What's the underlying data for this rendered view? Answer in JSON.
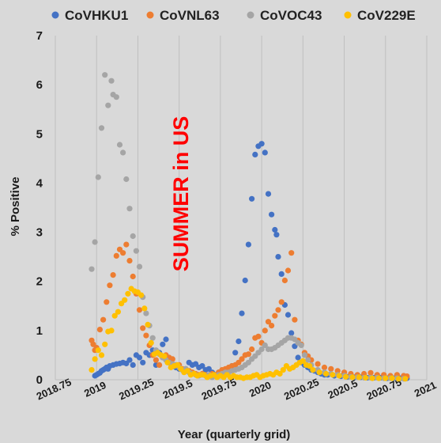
{
  "chart_data": {
    "type": "scatter",
    "xlabel": "Year (quarterly grid)",
    "ylabel": "% Positive",
    "xlim": [
      2018.75,
      2021
    ],
    "ylim": [
      0,
      7
    ],
    "xticks": [
      2018.75,
      2019,
      2019.25,
      2019.5,
      2019.75,
      2020,
      2020.25,
      2020.5,
      2020.75,
      2021
    ],
    "xtick_labels": [
      "2018.75",
      "2019",
      "2019.25",
      "2019.5",
      "2019.75",
      "2020",
      "2020.25",
      "2020.5",
      "2020.75",
      "2021"
    ],
    "yticks": [
      0,
      1,
      2,
      3,
      4,
      5,
      6,
      7
    ],
    "grid": "vertical",
    "legend": "top",
    "annotation": "SUMMER in US",
    "series": [
      {
        "name": "CoVHKU1",
        "color": "#4472c4",
        "x": [
          2018.99,
          2019.0,
          2019.01,
          2019.02,
          2019.03,
          2019.04,
          2019.05,
          2019.06,
          2019.07,
          2019.08,
          2019.1,
          2019.12,
          2019.14,
          2019.16,
          2019.18,
          2019.2,
          2019.22,
          2019.24,
          2019.26,
          2019.28,
          2019.3,
          2019.32,
          2019.34,
          2019.36,
          2019.38,
          2019.4,
          2019.42,
          2019.44,
          2019.46,
          2019.48,
          2019.5,
          2019.52,
          2019.54,
          2019.56,
          2019.58,
          2019.6,
          2019.62,
          2019.64,
          2019.66,
          2019.68,
          2019.7,
          2019.72,
          2019.74,
          2019.76,
          2019.78,
          2019.8,
          2019.82,
          2019.84,
          2019.86,
          2019.88,
          2019.9,
          2019.92,
          2019.94,
          2019.96,
          2019.98,
          2020.0,
          2020.02,
          2020.04,
          2020.06,
          2020.08,
          2020.09,
          2020.1,
          2020.12,
          2020.14,
          2020.16,
          2020.18,
          2020.2,
          2020.22,
          2020.24,
          2020.26,
          2020.28,
          2020.3,
          2020.32,
          2020.34,
          2020.36,
          2020.38,
          2020.4,
          2020.44,
          2020.48,
          2020.52,
          2020.56,
          2020.6,
          2020.64,
          2020.68,
          2020.72,
          2020.76,
          2020.8,
          2020.84,
          2020.88
        ],
        "y": [
          0.08,
          0.1,
          0.12,
          0.14,
          0.18,
          0.2,
          0.22,
          0.25,
          0.22,
          0.28,
          0.3,
          0.32,
          0.33,
          0.35,
          0.33,
          0.4,
          0.3,
          0.5,
          0.45,
          0.35,
          0.55,
          0.5,
          0.6,
          0.3,
          0.55,
          0.72,
          0.82,
          0.35,
          0.3,
          0.25,
          0.22,
          0.2,
          0.22,
          0.35,
          0.3,
          0.32,
          0.25,
          0.28,
          0.2,
          0.22,
          0.15,
          0.1,
          0.15,
          0.12,
          0.18,
          0.22,
          0.28,
          0.55,
          0.78,
          1.35,
          2.02,
          2.75,
          3.68,
          4.58,
          4.75,
          4.8,
          4.62,
          3.78,
          3.36,
          3.05,
          2.95,
          2.5,
          2.15,
          1.52,
          1.32,
          0.95,
          0.68,
          0.45,
          0.35,
          0.3,
          0.25,
          0.2,
          0.18,
          0.15,
          0.12,
          0.1,
          0.1,
          0.08,
          0.07,
          0.06,
          0.05,
          0.05,
          0.04,
          0.04,
          0.04,
          0.03,
          0.03,
          0.03,
          0.03
        ]
      },
      {
        "name": "CoVNL63",
        "color": "#ed7d31",
        "x": [
          2018.97,
          2018.98,
          2018.99,
          2019.0,
          2019.02,
          2019.04,
          2019.06,
          2019.08,
          2019.1,
          2019.12,
          2019.14,
          2019.16,
          2019.18,
          2019.2,
          2019.22,
          2019.24,
          2019.26,
          2019.28,
          2019.3,
          2019.32,
          2019.34,
          2019.36,
          2019.38,
          2019.4,
          2019.42,
          2019.44,
          2019.46,
          2019.48,
          2019.5,
          2019.52,
          2019.54,
          2019.56,
          2019.58,
          2019.6,
          2019.62,
          2019.64,
          2019.66,
          2019.68,
          2019.7,
          2019.72,
          2019.74,
          2019.76,
          2019.78,
          2019.8,
          2019.82,
          2019.84,
          2019.86,
          2019.88,
          2019.9,
          2019.92,
          2019.94,
          2019.96,
          2019.98,
          2020.0,
          2020.02,
          2020.04,
          2020.06,
          2020.08,
          2020.1,
          2020.12,
          2020.14,
          2020.16,
          2020.18,
          2020.2,
          2020.22,
          2020.24,
          2020.26,
          2020.28,
          2020.3,
          2020.34,
          2020.38,
          2020.42,
          2020.46,
          2020.5,
          2020.54,
          2020.58,
          2020.62,
          2020.66,
          2020.7,
          2020.74,
          2020.78,
          2020.82,
          2020.86,
          2020.88
        ],
        "y": [
          0.8,
          0.72,
          0.6,
          0.65,
          1.02,
          1.22,
          1.58,
          1.92,
          2.13,
          2.52,
          2.65,
          2.58,
          2.75,
          2.42,
          2.1,
          1.75,
          1.42,
          1.05,
          0.9,
          0.7,
          0.5,
          0.4,
          0.3,
          0.45,
          0.5,
          0.45,
          0.42,
          0.3,
          0.3,
          0.22,
          0.2,
          0.18,
          0.15,
          0.12,
          0.1,
          0.12,
          0.1,
          0.08,
          0.12,
          0.1,
          0.15,
          0.2,
          0.22,
          0.25,
          0.28,
          0.3,
          0.35,
          0.42,
          0.5,
          0.52,
          0.62,
          0.85,
          0.88,
          0.75,
          1.0,
          1.18,
          1.1,
          1.3,
          1.42,
          1.58,
          2.02,
          2.22,
          2.58,
          1.22,
          0.8,
          0.72,
          0.55,
          0.48,
          0.4,
          0.32,
          0.25,
          0.22,
          0.18,
          0.15,
          0.12,
          0.1,
          0.12,
          0.14,
          0.1,
          0.1,
          0.08,
          0.1,
          0.08,
          0.07
        ]
      },
      {
        "name": "CoVOC43",
        "color": "#a5a5a5",
        "x": [
          2018.97,
          2018.99,
          2019.01,
          2019.03,
          2019.05,
          2019.07,
          2019.09,
          2019.1,
          2019.12,
          2019.14,
          2019.16,
          2019.18,
          2019.2,
          2019.22,
          2019.24,
          2019.26,
          2019.28,
          2019.3,
          2019.32,
          2019.34,
          2019.36,
          2019.38,
          2019.4,
          2019.42,
          2019.44,
          2019.46,
          2019.48,
          2019.5,
          2019.52,
          2019.54,
          2019.56,
          2019.58,
          2019.6,
          2019.62,
          2019.64,
          2019.66,
          2019.68,
          2019.7,
          2019.72,
          2019.74,
          2019.76,
          2019.78,
          2019.8,
          2019.82,
          2019.84,
          2019.86,
          2019.88,
          2019.9,
          2019.92,
          2019.94,
          2019.96,
          2019.98,
          2020.0,
          2020.02,
          2020.04,
          2020.06,
          2020.08,
          2020.1,
          2020.12,
          2020.14,
          2020.16,
          2020.18,
          2020.2,
          2020.22,
          2020.24,
          2020.26,
          2020.28,
          2020.3,
          2020.34,
          2020.38,
          2020.42,
          2020.46,
          2020.5,
          2020.54,
          2020.58,
          2020.62,
          2020.66,
          2020.7,
          2020.74,
          2020.78,
          2020.82,
          2020.86
        ],
        "y": [
          2.25,
          2.8,
          4.12,
          5.12,
          6.2,
          5.58,
          6.08,
          5.8,
          5.75,
          4.78,
          4.62,
          4.08,
          3.48,
          2.92,
          2.62,
          2.3,
          1.68,
          1.35,
          1.1,
          0.85,
          0.6,
          0.52,
          0.45,
          0.4,
          0.35,
          0.32,
          0.3,
          0.25,
          0.2,
          0.22,
          0.15,
          0.12,
          0.1,
          0.08,
          0.1,
          0.08,
          0.1,
          0.05,
          0.08,
          0.1,
          0.12,
          0.15,
          0.15,
          0.18,
          0.2,
          0.22,
          0.25,
          0.3,
          0.35,
          0.42,
          0.48,
          0.55,
          0.62,
          0.7,
          0.62,
          0.62,
          0.65,
          0.7,
          0.75,
          0.8,
          0.85,
          0.85,
          0.82,
          0.75,
          0.7,
          0.5,
          0.4,
          0.3,
          0.2,
          0.15,
          0.12,
          0.1,
          0.08,
          0.06,
          0.05,
          0.04,
          0.04,
          0.04,
          0.03,
          0.03,
          0.03,
          0.02
        ]
      },
      {
        "name": "CoV229E",
        "color": "#ffc000",
        "x": [
          2018.97,
          2018.99,
          2019.01,
          2019.03,
          2019.05,
          2019.07,
          2019.09,
          2019.11,
          2019.13,
          2019.15,
          2019.17,
          2019.19,
          2019.21,
          2019.23,
          2019.25,
          2019.27,
          2019.29,
          2019.31,
          2019.33,
          2019.35,
          2019.37,
          2019.39,
          2019.41,
          2019.43,
          2019.45,
          2019.47,
          2019.49,
          2019.51,
          2019.53,
          2019.55,
          2019.57,
          2019.59,
          2019.61,
          2019.63,
          2019.65,
          2019.67,
          2019.69,
          2019.71,
          2019.73,
          2019.75,
          2019.77,
          2019.79,
          2019.81,
          2019.83,
          2019.85,
          2019.87,
          2019.89,
          2019.91,
          2019.93,
          2019.95,
          2019.97,
          2019.99,
          2020.01,
          2020.03,
          2020.05,
          2020.07,
          2020.09,
          2020.11,
          2020.13,
          2020.15,
          2020.17,
          2020.19,
          2020.21,
          2020.23,
          2020.25,
          2020.27,
          2020.29,
          2020.31,
          2020.35,
          2020.39,
          2020.43,
          2020.47,
          2020.51,
          2020.55,
          2020.59,
          2020.63,
          2020.67,
          2020.71,
          2020.75,
          2020.79,
          2020.83,
          2020.87
        ],
        "y": [
          0.2,
          0.42,
          0.6,
          0.5,
          0.72,
          0.98,
          1.0,
          1.3,
          1.38,
          1.55,
          1.62,
          1.75,
          1.85,
          1.8,
          1.78,
          1.72,
          1.45,
          1.12,
          0.75,
          0.52,
          0.55,
          0.5,
          0.48,
          0.35,
          0.25,
          0.28,
          0.3,
          0.22,
          0.15,
          0.18,
          0.1,
          0.12,
          0.08,
          0.1,
          0.1,
          0.05,
          0.08,
          0.1,
          0.05,
          0.08,
          0.05,
          0.1,
          0.05,
          0.08,
          0.05,
          0.05,
          0.03,
          0.05,
          0.05,
          0.08,
          0.1,
          0.05,
          0.08,
          0.1,
          0.12,
          0.1,
          0.15,
          0.12,
          0.2,
          0.28,
          0.22,
          0.25,
          0.3,
          0.35,
          0.38,
          0.3,
          0.28,
          0.2,
          0.15,
          0.12,
          0.1,
          0.08,
          0.06,
          0.05,
          0.05,
          0.04,
          0.03,
          0.03,
          0.03,
          0.03,
          0.02,
          0.02
        ]
      }
    ]
  }
}
